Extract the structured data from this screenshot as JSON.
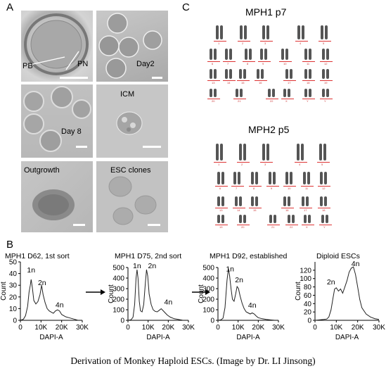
{
  "panels": {
    "A": {
      "letter": "A",
      "images": [
        {
          "id": "zygote",
          "labels": [
            "PB",
            "PN"
          ]
        },
        {
          "id": "day2",
          "labels": [
            "Day2"
          ]
        },
        {
          "id": "day8",
          "labels": [
            "Day 8"
          ]
        },
        {
          "id": "icm",
          "labels": [
            "ICM"
          ]
        },
        {
          "id": "outgrowth",
          "labels": [
            "Outgrowth"
          ]
        },
        {
          "id": "esc",
          "labels": [
            "ESC clones"
          ]
        }
      ]
    },
    "B": {
      "letter": "B"
    },
    "C": {
      "letter": "C",
      "karyotypes": [
        {
          "title": "MPH1 p7",
          "chromosome_labels": [
            "1",
            "2",
            "3",
            "4",
            "5",
            "6",
            "7",
            "8",
            "9",
            "10",
            "11",
            "12",
            "13",
            "14",
            "15",
            "16",
            "17",
            "18",
            "19",
            "20",
            "21",
            "22",
            "X",
            "Y"
          ]
        },
        {
          "title": "MPH2 p5",
          "chromosome_labels": [
            "1",
            "2",
            "3",
            "4",
            "5",
            "6",
            "7",
            "8",
            "9",
            "10",
            "11",
            "12",
            "13",
            "14",
            "15",
            "16",
            "17",
            "18",
            "19",
            "20",
            "21",
            "22",
            "X",
            "Y"
          ]
        }
      ]
    }
  },
  "chart_data": [
    {
      "type": "line",
      "title": "MPH1 D62, 1st sort",
      "xlabel": "DAPI-A",
      "ylabel": "Count",
      "xlim": [
        0,
        30000
      ],
      "ylim": [
        0,
        50
      ],
      "xticks": [
        "0",
        "10K",
        "20K",
        "30K"
      ],
      "yticks": [
        "0",
        "10",
        "20",
        "30",
        "40",
        "50"
      ],
      "peak_labels": [
        {
          "text": "1n",
          "x": 5200,
          "y": 41
        },
        {
          "text": "2n",
          "x": 10500,
          "y": 30
        },
        {
          "text": "4n",
          "x": 19000,
          "y": 11
        }
      ],
      "x": [
        0,
        1500,
        2500,
        3500,
        4200,
        4800,
        5200,
        5800,
        6500,
        7500,
        8500,
        9500,
        10300,
        11000,
        12000,
        13000,
        14000,
        15000,
        16000,
        17000,
        18000,
        19000,
        20000,
        22000,
        24000,
        26000,
        28000
      ],
      "y": [
        0,
        1,
        4,
        12,
        24,
        30,
        35,
        28,
        17,
        14,
        16,
        22,
        30,
        22,
        15,
        10,
        8,
        7,
        6,
        8,
        9,
        8,
        5,
        3,
        2,
        1,
        0
      ]
    },
    {
      "type": "line",
      "title": "MPH1 D75, 2nd sort",
      "xlabel": "DAPI-A",
      "ylabel": "Count",
      "xlim": [
        0,
        30000
      ],
      "ylim": [
        0,
        500
      ],
      "xticks": [
        "0",
        "10K",
        "20K",
        "30K"
      ],
      "yticks": [
        "0",
        "100",
        "200",
        "300",
        "400",
        "500"
      ],
      "peak_labels": [
        {
          "text": "1n",
          "x": 4500,
          "y": 495
        },
        {
          "text": "2n",
          "x": 12000,
          "y": 495
        },
        {
          "text": "4n",
          "x": 20000,
          "y": 150
        }
      ],
      "x": [
        0,
        1500,
        2500,
        3300,
        4000,
        4500,
        5000,
        5600,
        6200,
        7000,
        7800,
        8600,
        9200,
        9800,
        10500,
        11500,
        12500,
        13500,
        14500,
        15500,
        16500,
        17500,
        18500,
        19500,
        21000,
        23000,
        25000,
        27000
      ],
      "y": [
        0,
        5,
        30,
        150,
        400,
        480,
        400,
        180,
        90,
        80,
        150,
        350,
        480,
        420,
        250,
        150,
        100,
        85,
        80,
        95,
        110,
        90,
        70,
        50,
        30,
        15,
        8,
        2
      ]
    },
    {
      "type": "line",
      "title": "MPH1 D92, established",
      "xlabel": "DAPI-A",
      "ylabel": "Count",
      "xlim": [
        0,
        30000
      ],
      "ylim": [
        0,
        500
      ],
      "xticks": [
        "0",
        "10K",
        "20K",
        "30K"
      ],
      "yticks": [
        "0",
        "100",
        "200",
        "300",
        "400",
        "500"
      ],
      "peak_labels": [
        {
          "text": "1n",
          "x": 6000,
          "y": 465
        },
        {
          "text": "2n",
          "x": 10500,
          "y": 360
        },
        {
          "text": "4n",
          "x": 17000,
          "y": 120
        }
      ],
      "x": [
        0,
        1500,
        2500,
        3500,
        4500,
        5200,
        5800,
        6500,
        7200,
        8000,
        8800,
        9500,
        10200,
        11000,
        12000,
        13000,
        14000,
        15000,
        16000,
        17000,
        18000,
        19000,
        20000,
        22000,
        24000,
        26000,
        28000
      ],
      "y": [
        0,
        5,
        20,
        120,
        380,
        490,
        420,
        300,
        200,
        180,
        250,
        320,
        300,
        230,
        160,
        110,
        80,
        70,
        60,
        70,
        60,
        40,
        25,
        15,
        8,
        4,
        1
      ]
    },
    {
      "type": "line",
      "title": "Diploid ESCs",
      "xlabel": "DAPI-A",
      "ylabel": "Count",
      "xlim": [
        0,
        30000
      ],
      "ylim": [
        0,
        140
      ],
      "xticks": [
        "0",
        "10K",
        "20K",
        "30K"
      ],
      "yticks": [
        "0",
        "20",
        "40",
        "60",
        "80",
        "100",
        "120"
      ],
      "peak_labels": [
        {
          "text": "2n",
          "x": 7500,
          "y": 86
        },
        {
          "text": "4n",
          "x": 19000,
          "y": 130
        }
      ],
      "x": [
        0,
        2000,
        4000,
        5500,
        6500,
        7500,
        8500,
        9200,
        10000,
        11000,
        12000,
        13000,
        14000,
        15000,
        16000,
        17000,
        18000,
        19000,
        20000,
        21000,
        22000,
        24000,
        26000,
        28000,
        30000
      ],
      "y": [
        0,
        1,
        2,
        3,
        8,
        25,
        55,
        75,
        78,
        70,
        75,
        65,
        80,
        95,
        115,
        125,
        128,
        110,
        80,
        50,
        30,
        15,
        8,
        4,
        2
      ]
    }
  ],
  "caption": "Derivation of Monkey Haploid ESCs. (Image by Dr. LI Jinsong)"
}
